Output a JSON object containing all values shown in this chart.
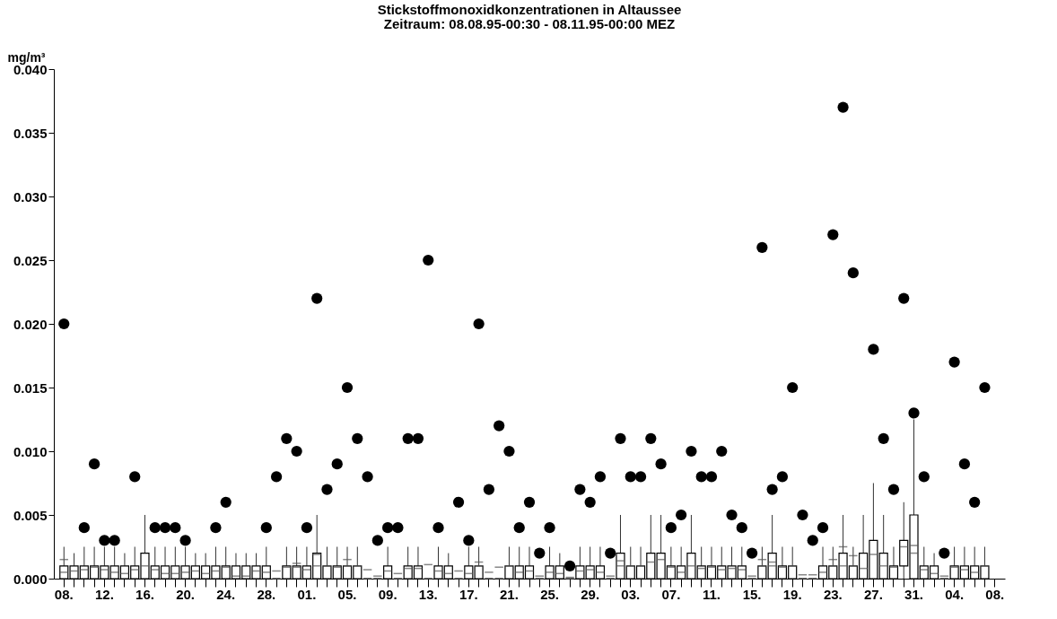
{
  "chart_data": {
    "type": "box",
    "title": "Stickstoffmonoxidkonzentrationen in Altaussee",
    "subtitle": "Zeitraum: 08.08.95-00:30 - 08.11.95-00:00 MEZ",
    "ylabel": "mg/m³",
    "ylim": [
      0,
      0.04
    ],
    "yticks": [
      {
        "value": 0,
        "label": "0.000"
      },
      {
        "value": 0.005,
        "label": "0.005"
      },
      {
        "value": 0.01,
        "label": "0.010"
      },
      {
        "value": 0.015,
        "label": "0.015"
      },
      {
        "value": 0.02,
        "label": "0.020"
      },
      {
        "value": 0.025,
        "label": "0.025"
      },
      {
        "value": 0.03,
        "label": "0.030"
      },
      {
        "value": 0.035,
        "label": "0.035"
      },
      {
        "value": 0.04,
        "label": "0.040"
      }
    ],
    "categories": [
      "08.",
      null,
      null,
      null,
      "12.",
      null,
      null,
      null,
      "16.",
      null,
      null,
      null,
      "20.",
      null,
      null,
      null,
      "24.",
      null,
      null,
      null,
      "28.",
      null,
      null,
      null,
      "01.",
      null,
      null,
      null,
      "05.",
      null,
      null,
      null,
      "09.",
      null,
      null,
      null,
      "13.",
      null,
      null,
      null,
      "17.",
      null,
      null,
      null,
      "21.",
      null,
      null,
      null,
      "25.",
      null,
      null,
      null,
      "29.",
      null,
      null,
      null,
      "03.",
      null,
      null,
      null,
      "07.",
      null,
      null,
      null,
      "11.",
      null,
      null,
      null,
      "15.",
      null,
      null,
      null,
      "19.",
      null,
      null,
      null,
      "23.",
      null,
      null,
      null,
      "27.",
      null,
      null,
      null,
      "31.",
      null,
      null,
      null,
      "04.",
      null,
      null,
      null,
      "08."
    ],
    "boxes": [
      {
        "low": 0,
        "q1": 0,
        "median": 0.0005,
        "q3": 0.001,
        "high": 0.0025,
        "mean": 0.0015,
        "outliers": [
          0.02
        ]
      },
      {
        "low": 0,
        "q1": 0,
        "median": 0.0006,
        "q3": 0.001,
        "high": 0.002
      },
      {
        "low": 0,
        "q1": 0,
        "median": 0.0007,
        "q3": 0.001,
        "high": 0.0025,
        "outliers": [
          0.004
        ]
      },
      {
        "low": 0,
        "q1": 0,
        "median": 0.0009,
        "q3": 0.001,
        "high": 0.0025,
        "outliers": [
          0.009
        ]
      },
      {
        "low": 0,
        "q1": 0,
        "median": 0.0007,
        "q3": 0.001,
        "high": 0.0025,
        "outliers": [
          0.003
        ]
      },
      {
        "low": 0,
        "q1": 0,
        "median": 0.0005,
        "q3": 0.001,
        "high": 0.0025,
        "outliers": [
          0.003
        ]
      },
      {
        "low": 0,
        "q1": 0,
        "median": 0.0004,
        "q3": 0.001,
        "high": 0.002
      },
      {
        "low": 0,
        "q1": 0,
        "median": 0.0007,
        "q3": 0.001,
        "high": 0.0025,
        "outliers": [
          0.008
        ]
      },
      {
        "low": 0,
        "q1": 0,
        "median": 0.001,
        "q3": 0.002,
        "high": 0.005
      },
      {
        "low": 0,
        "q1": 0,
        "median": 0.0007,
        "q3": 0.001,
        "high": 0.0025,
        "outliers": [
          0.004
        ]
      },
      {
        "low": 0,
        "q1": 0,
        "median": 0.0004,
        "q3": 0.001,
        "high": 0.0025,
        "outliers": [
          0.004
        ]
      },
      {
        "low": 0,
        "q1": 0,
        "median": 0.0004,
        "q3": 0.001,
        "high": 0.0025,
        "outliers": [
          0.004
        ]
      },
      {
        "low": 0,
        "q1": 0,
        "median": 0.0005,
        "q3": 0.001,
        "high": 0.0025,
        "outliers": [
          0.003
        ]
      },
      {
        "low": 0,
        "q1": 0,
        "median": 0.0006,
        "q3": 0.001,
        "high": 0.002
      },
      {
        "low": 0,
        "q1": 0,
        "median": 0.0004,
        "q3": 0.001,
        "high": 0.002
      },
      {
        "low": 0,
        "q1": 0,
        "median": 0.0006,
        "q3": 0.001,
        "high": 0.0025,
        "outliers": [
          0.004
        ]
      },
      {
        "low": 0,
        "q1": 0,
        "median": 0.0009,
        "q3": 0.001,
        "high": 0.0025,
        "outliers": [
          0.006
        ]
      },
      {
        "low": 0,
        "q1": 0,
        "median": 0.0002,
        "q3": 0.001,
        "high": 0.002
      },
      {
        "low": 0,
        "q1": 0,
        "median": 0.0002,
        "q3": 0.001,
        "high": 0.002
      },
      {
        "low": 0,
        "q1": 0,
        "median": 0.0006,
        "q3": 0.001,
        "high": 0.002
      },
      {
        "low": 0,
        "q1": 0,
        "median": 0.0005,
        "q3": 0.001,
        "high": 0.0025,
        "outliers": [
          0.004
        ]
      },
      {
        "low": 0,
        "q1": 0,
        "median": 0,
        "q3": 0,
        "high": 0,
        "mean": 0.0006,
        "outliers": [
          0.008
        ]
      },
      {
        "low": 0,
        "q1": 0,
        "median": 0.0009,
        "q3": 0.001,
        "high": 0.0025,
        "outliers": [
          0.011
        ]
      },
      {
        "low": 0,
        "q1": 0,
        "median": 0.0009,
        "q3": 0.001,
        "high": 0.0025,
        "mean": 0.0012,
        "outliers": [
          0.01
        ]
      },
      {
        "low": 0,
        "q1": 0,
        "median": 0.0007,
        "q3": 0.001,
        "high": 0.0025,
        "outliers": [
          0.004
        ]
      },
      {
        "low": 0,
        "q1": 0,
        "median": 0.001,
        "q3": 0.002,
        "high": 0.005,
        "mean": 0.0019,
        "outliers": [
          0.022
        ]
      },
      {
        "low": 0,
        "q1": 0,
        "median": 0.001,
        "q3": 0.001,
        "high": 0.0025,
        "outliers": [
          0.007
        ]
      },
      {
        "low": 0,
        "q1": 0,
        "median": 0.0009,
        "q3": 0.001,
        "high": 0.0025,
        "outliers": [
          0.009
        ]
      },
      {
        "low": 0,
        "q1": 0,
        "median": 0.001,
        "q3": 0.001,
        "high": 0.0025,
        "mean": 0.0015,
        "outliers": [
          0.015
        ]
      },
      {
        "low": 0,
        "q1": 0,
        "median": 0.001,
        "q3": 0.001,
        "high": 0.0025,
        "outliers": [
          0.011
        ]
      },
      {
        "low": 0,
        "q1": 0,
        "median": 0,
        "q3": 0,
        "high": 0,
        "mean": 0.0007,
        "outliers": [
          0.008
        ]
      },
      {
        "low": 0,
        "q1": 0,
        "median": 0,
        "q3": 0,
        "high": 0,
        "mean": 0.0002,
        "outliers": [
          0.003
        ]
      },
      {
        "low": 0,
        "q1": 0,
        "median": 0.0006,
        "q3": 0.001,
        "high": 0.0025,
        "outliers": [
          0.004
        ]
      },
      {
        "low": 0,
        "q1": 0,
        "median": 0,
        "q3": 0,
        "high": 0,
        "mean": 0.0004,
        "outliers": [
          0.004
        ]
      },
      {
        "low": 0,
        "q1": 0,
        "median": 0.0008,
        "q3": 0.001,
        "high": 0.0025,
        "outliers": [
          0.011
        ]
      },
      {
        "low": 0,
        "q1": 0,
        "median": 0.0008,
        "q3": 0.001,
        "high": 0.0025,
        "outliers": [
          0.011
        ]
      },
      {
        "low": 0,
        "q1": 0,
        "median": 0,
        "q3": 0,
        "high": 0,
        "mean": 0.0011,
        "outliers": [
          0.025
        ]
      },
      {
        "low": 0,
        "q1": 0,
        "median": 0.0006,
        "q3": 0.001,
        "high": 0.0025,
        "outliers": [
          0.004
        ]
      },
      {
        "low": 0,
        "q1": 0,
        "median": 0.0004,
        "q3": 0.001,
        "high": 0.002
      },
      {
        "low": 0,
        "q1": 0,
        "median": 0,
        "q3": 0,
        "high": 0,
        "mean": 0.0006,
        "outliers": [
          0.006
        ]
      },
      {
        "low": 0,
        "q1": 0,
        "median": 0.0004,
        "q3": 0.001,
        "high": 0.0025,
        "outliers": [
          0.003
        ]
      },
      {
        "low": 0,
        "q1": 0,
        "median": 0.001,
        "q3": 0.001,
        "high": 0.0025,
        "mean": 0.0013,
        "outliers": [
          0.02
        ]
      },
      {
        "low": 0,
        "q1": 0,
        "median": 0,
        "q3": 0,
        "high": 0,
        "mean": 0.0005,
        "outliers": [
          0.007
        ]
      },
      {
        "low": 0,
        "q1": 0,
        "median": 0,
        "q3": 0,
        "high": 0,
        "mean": 0.0009,
        "outliers": [
          0.012
        ]
      },
      {
        "low": 0,
        "q1": 0,
        "median": 0.001,
        "q3": 0.001,
        "high": 0.0025,
        "outliers": [
          0.01
        ]
      },
      {
        "low": 0,
        "q1": 0,
        "median": 0.0005,
        "q3": 0.001,
        "high": 0.0025,
        "outliers": [
          0.004
        ]
      },
      {
        "low": 0,
        "q1": 0,
        "median": 0.0006,
        "q3": 0.001,
        "high": 0.0025,
        "outliers": [
          0.006
        ]
      },
      {
        "low": 0,
        "q1": 0,
        "median": 0,
        "q3": 0,
        "high": 0,
        "mean": 0.0002,
        "outliers": [
          0.002
        ]
      },
      {
        "low": 0,
        "q1": 0,
        "median": 0.0005,
        "q3": 0.001,
        "high": 0.0025,
        "outliers": [
          0.004
        ]
      },
      {
        "low": 0,
        "q1": 0,
        "median": 0.0004,
        "q3": 0.001,
        "high": 0.002
      },
      {
        "low": 0,
        "q1": 0,
        "median": 0,
        "q3": 0,
        "high": 0,
        "mean": 0.0001,
        "outliers": [
          0.001
        ]
      },
      {
        "low": 0,
        "q1": 0,
        "median": 0.0006,
        "q3": 0.001,
        "high": 0.0025,
        "outliers": [
          0.007
        ]
      },
      {
        "low": 0,
        "q1": 0,
        "median": 0.0007,
        "q3": 0.001,
        "high": 0.0025,
        "outliers": [
          0.006
        ]
      },
      {
        "low": 0,
        "q1": 0,
        "median": 0.0005,
        "q3": 0.001,
        "high": 0.0025,
        "outliers": [
          0.008
        ]
      },
      {
        "low": 0,
        "q1": 0,
        "median": 0,
        "q3": 0,
        "high": 0,
        "mean": 0.0002,
        "outliers": [
          0.002
        ]
      },
      {
        "low": 0,
        "q1": 0,
        "median": 0.001,
        "q3": 0.002,
        "high": 0.005,
        "mean": 0.0014,
        "outliers": [
          0.011
        ]
      },
      {
        "low": 0,
        "q1": 0,
        "median": 0.001,
        "q3": 0.001,
        "high": 0.0025,
        "outliers": [
          0.008
        ]
      },
      {
        "low": 0,
        "q1": 0,
        "median": 0.001,
        "q3": 0.001,
        "high": 0.0025,
        "outliers": [
          0.008
        ]
      },
      {
        "low": 0,
        "q1": 0,
        "median": 0.0013,
        "q3": 0.002,
        "high": 0.005,
        "outliers": [
          0.011
        ]
      },
      {
        "low": 0,
        "q1": 0,
        "median": 0.0015,
        "q3": 0.002,
        "high": 0.005,
        "outliers": [
          0.009
        ]
      },
      {
        "low": 0,
        "q1": 0,
        "median": 0.0009,
        "q3": 0.001,
        "high": 0.0025,
        "outliers": [
          0.004
        ]
      },
      {
        "low": 0,
        "q1": 0,
        "median": 0.0005,
        "q3": 0.001,
        "high": 0.0025,
        "outliers": [
          0.005
        ]
      },
      {
        "low": 0,
        "q1": 0,
        "median": 0.001,
        "q3": 0.002,
        "high": 0.005,
        "outliers": [
          0.01
        ]
      },
      {
        "low": 0,
        "q1": 0,
        "median": 0.0008,
        "q3": 0.001,
        "high": 0.0025,
        "outliers": [
          0.008
        ]
      },
      {
        "low": 0,
        "q1": 0,
        "median": 0.0009,
        "q3": 0.001,
        "high": 0.0025,
        "outliers": [
          0.008
        ]
      },
      {
        "low": 0,
        "q1": 0,
        "median": 0.0007,
        "q3": 0.001,
        "high": 0.0025,
        "outliers": [
          0.01
        ]
      },
      {
        "low": 0,
        "q1": 0,
        "median": 0.0008,
        "q3": 0.001,
        "high": 0.0025,
        "outliers": [
          0.005
        ]
      },
      {
        "low": 0,
        "q1": 0,
        "median": 0.0007,
        "q3": 0.001,
        "high": 0.0025,
        "outliers": [
          0.004
        ]
      },
      {
        "low": 0,
        "q1": 0,
        "median": 0,
        "q3": 0,
        "high": 0,
        "mean": 0.0002,
        "outliers": [
          0.002
        ]
      },
      {
        "low": 0,
        "q1": 0,
        "median": 0.001,
        "q3": 0.001,
        "high": 0.0025,
        "mean": 0.0015,
        "outliers": [
          0.026
        ]
      },
      {
        "low": 0,
        "q1": 0,
        "median": 0.001,
        "q3": 0.002,
        "high": 0.005,
        "mean": 0.0013,
        "outliers": [
          0.007
        ]
      },
      {
        "low": 0,
        "q1": 0,
        "median": 0.0009,
        "q3": 0.001,
        "high": 0.0025,
        "outliers": [
          0.008
        ]
      },
      {
        "low": 0,
        "q1": 0,
        "median": 0.001,
        "q3": 0.001,
        "high": 0.0025,
        "outliers": [
          0.015
        ]
      },
      {
        "low": 0,
        "q1": 0,
        "median": 0,
        "q3": 0,
        "high": 0,
        "mean": 0.0003,
        "outliers": [
          0.005
        ]
      },
      {
        "low": 0,
        "q1": 0,
        "median": 0,
        "q3": 0,
        "high": 0,
        "mean": 0.0003,
        "outliers": [
          0.003
        ]
      },
      {
        "low": 0,
        "q1": 0,
        "median": 0.0005,
        "q3": 0.001,
        "high": 0.0025,
        "outliers": [
          0.004
        ]
      },
      {
        "low": 0,
        "q1": 0,
        "median": 0.001,
        "q3": 0.001,
        "high": 0.0025,
        "mean": 0.0015,
        "outliers": [
          0.027
        ]
      },
      {
        "low": 0,
        "q1": 0,
        "median": 0.001,
        "q3": 0.002,
        "high": 0.005,
        "mean": 0.0025,
        "outliers": [
          0.037
        ]
      },
      {
        "low": 0,
        "q1": 0,
        "median": 0.001,
        "q3": 0.001,
        "high": 0.0025,
        "mean": 0.0018,
        "outliers": [
          0.024
        ]
      },
      {
        "low": 0,
        "q1": 0,
        "median": 0.0008,
        "q3": 0.002,
        "high": 0.005
      },
      {
        "low": 0,
        "q1": 0,
        "median": 0.0019,
        "q3": 0.003,
        "high": 0.0075,
        "outliers": [
          0.018
        ]
      },
      {
        "low": 0,
        "q1": 0,
        "median": 0.001,
        "q3": 0.002,
        "high": 0.005,
        "outliers": [
          0.011
        ]
      },
      {
        "low": 0,
        "q1": 0,
        "median": 0.0009,
        "q3": 0.001,
        "high": 0.0025,
        "outliers": [
          0.007
        ]
      },
      {
        "low": 0,
        "q1": 0.001,
        "median": 0.0025,
        "q3": 0.003,
        "high": 0.006,
        "outliers": [
          0.022
        ]
      },
      {
        "low": 0,
        "q1": 0,
        "median": 0.002,
        "q3": 0.005,
        "high": 0.0125,
        "mean": 0.0026,
        "outliers": [
          0.013
        ]
      },
      {
        "low": 0,
        "q1": 0,
        "median": 0.0007,
        "q3": 0.001,
        "high": 0.0025,
        "outliers": [
          0.008
        ]
      },
      {
        "low": 0,
        "q1": 0,
        "median": 0.0004,
        "q3": 0.001,
        "high": 0.002
      },
      {
        "low": 0,
        "q1": 0,
        "median": 0,
        "q3": 0,
        "high": 0,
        "mean": 0.0002,
        "outliers": [
          0.002
        ]
      },
      {
        "low": 0,
        "q1": 0,
        "median": 0.0009,
        "q3": 0.001,
        "high": 0.0025,
        "outliers": [
          0.017
        ]
      },
      {
        "low": 0,
        "q1": 0,
        "median": 0.0007,
        "q3": 0.001,
        "high": 0.0025,
        "outliers": [
          0.009
        ]
      },
      {
        "low": 0,
        "q1": 0,
        "median": 0.0005,
        "q3": 0.001,
        "high": 0.0025,
        "outliers": [
          0.006
        ]
      },
      {
        "low": 0,
        "q1": 0,
        "median": 0.001,
        "q3": 0.001,
        "high": 0.0025,
        "outliers": [
          0.015
        ]
      },
      null
    ]
  }
}
